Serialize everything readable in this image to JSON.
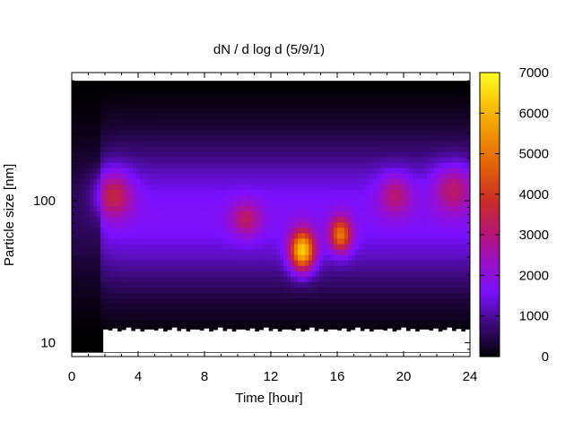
{
  "chart_data": {
    "type": "heatmap",
    "title": "dN / d log d (5/9/1)",
    "xlabel": "Time [hour]",
    "ylabel": "Particle size [nm]",
    "xlim": [
      0,
      24
    ],
    "ylim": [
      8,
      800
    ],
    "y_scale": "log",
    "x_ticks": [
      0,
      4,
      8,
      12,
      16,
      20,
      24
    ],
    "x_tick_labels": [
      "0",
      "4",
      "8",
      "12",
      "16",
      "20",
      "24"
    ],
    "y_ticks": [
      10,
      100
    ],
    "y_tick_labels": [
      "10",
      "100"
    ],
    "colorbar": {
      "range": [
        0,
        7000
      ],
      "ticks": [
        0,
        1000,
        2000,
        3000,
        4000,
        5000,
        6000,
        7000
      ],
      "tick_labels": [
        "0",
        "1000",
        "2000",
        "3000",
        "4000",
        "5000",
        "6000",
        "7000"
      ],
      "colormap": [
        {
          "value": 0,
          "color": "#000000"
        },
        {
          "value": 800,
          "color": "#3c0a7a"
        },
        {
          "value": 1600,
          "color": "#7a10ff"
        },
        {
          "value": 2400,
          "color": "#9e10c0"
        },
        {
          "value": 3000,
          "color": "#b4147a"
        },
        {
          "value": 3800,
          "color": "#c82a2a"
        },
        {
          "value": 4600,
          "color": "#e05a0a"
        },
        {
          "value": 5400,
          "color": "#ef8c00"
        },
        {
          "value": 6200,
          "color": "#f9c000"
        },
        {
          "value": 7000,
          "color": "#ffff20"
        }
      ]
    },
    "features": [
      {
        "description": "background level",
        "peak": 1700
      },
      {
        "time_hour": 2.5,
        "size_nm": 110,
        "peak": 3300
      },
      {
        "time_hour": 10.5,
        "size_nm": 75,
        "peak": 2900
      },
      {
        "time_hour": 13.9,
        "size_nm": 45,
        "peak": 6200
      },
      {
        "time_hour": 16.2,
        "size_nm": 58,
        "peak": 4800
      },
      {
        "time_hour": 19.5,
        "size_nm": 110,
        "peak": 2800
      },
      {
        "time_hour": 23.0,
        "size_nm": 120,
        "peak": 2900
      }
    ],
    "no_data_region": "white area below ~12 nm for most of the day"
  }
}
